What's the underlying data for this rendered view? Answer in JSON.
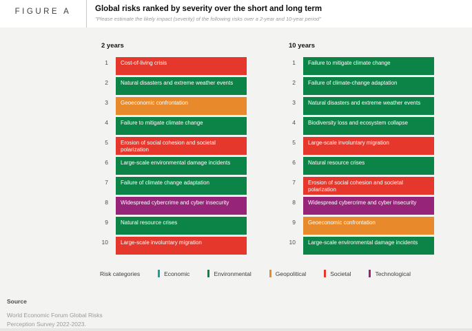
{
  "header": {
    "figure_label": "FIGURE A",
    "title": "Global risks ranked by severity over the short and long term",
    "subtitle": "\"Please estimate the likely impact (severity) of the following risks over a 2-year and 10-year period\""
  },
  "chart_data": {
    "type": "table",
    "title": "Global risks ranked by severity over the short and long term",
    "subtitle": "\"Please estimate the likely impact (severity) of the following risks over a 2-year and 10-year period\"",
    "category_colors": {
      "Economic": "#1b9e9e",
      "Environmental": "#0d8447",
      "Geopolitical": "#e8892b",
      "Societal": "#e5372c",
      "Technological": "#962478"
    },
    "columns": [
      {
        "label": "2 years",
        "items": [
          {
            "rank": 1,
            "label": "Cost-of-living crisis",
            "category": "Societal"
          },
          {
            "rank": 2,
            "label": "Natural disasters and extreme weather events",
            "category": "Environmental"
          },
          {
            "rank": 3,
            "label": "Geoeconomic confrontation",
            "category": "Geopolitical"
          },
          {
            "rank": 4,
            "label": "Failure to mitigate climate change",
            "category": "Environmental"
          },
          {
            "rank": 5,
            "label": "Erosion of social cohesion and societal polarization",
            "category": "Societal"
          },
          {
            "rank": 6,
            "label": "Large-scale environmental damage incidents",
            "category": "Environmental"
          },
          {
            "rank": 7,
            "label": "Failure of climate change adaptation",
            "category": "Environmental"
          },
          {
            "rank": 8,
            "label": "Widespread cybercrime and cyber insecurity",
            "category": "Technological"
          },
          {
            "rank": 9,
            "label": "Natural resource crises",
            "category": "Environmental"
          },
          {
            "rank": 10,
            "label": "Large-scale involuntary migration",
            "category": "Societal"
          }
        ]
      },
      {
        "label": "10 years",
        "items": [
          {
            "rank": 1,
            "label": "Failure to mitigate climate change",
            "category": "Environmental"
          },
          {
            "rank": 2,
            "label": "Failure of climate-change adaptation",
            "category": "Environmental"
          },
          {
            "rank": 3,
            "label": "Natural disasters and extreme weather events",
            "category": "Environmental"
          },
          {
            "rank": 4,
            "label": "Biodiversity loss and ecosystem collapse",
            "category": "Environmental"
          },
          {
            "rank": 5,
            "label": "Large-scale involuntary migration",
            "category": "Societal"
          },
          {
            "rank": 6,
            "label": "Natural resource crises",
            "category": "Environmental"
          },
          {
            "rank": 7,
            "label": "Erosion of social cohesion and societal polarization",
            "category": "Societal"
          },
          {
            "rank": 8,
            "label": "Widespread cybercrime and cyber insecurity",
            "category": "Technological"
          },
          {
            "rank": 9,
            "label": "Geoeconomic confrontation",
            "category": "Geopolitical"
          },
          {
            "rank": 10,
            "label": "Large-scale environmental damage incidents",
            "category": "Environmental"
          }
        ]
      }
    ],
    "legend": {
      "title": "Risk categories",
      "items": [
        "Economic",
        "Environmental",
        "Geopolitical",
        "Societal",
        "Technological"
      ]
    }
  },
  "footer": {
    "source_label": "Source",
    "source_lines": [
      "World Economic Forum Global Risks",
      "Perception Survey 2022-2023."
    ]
  }
}
